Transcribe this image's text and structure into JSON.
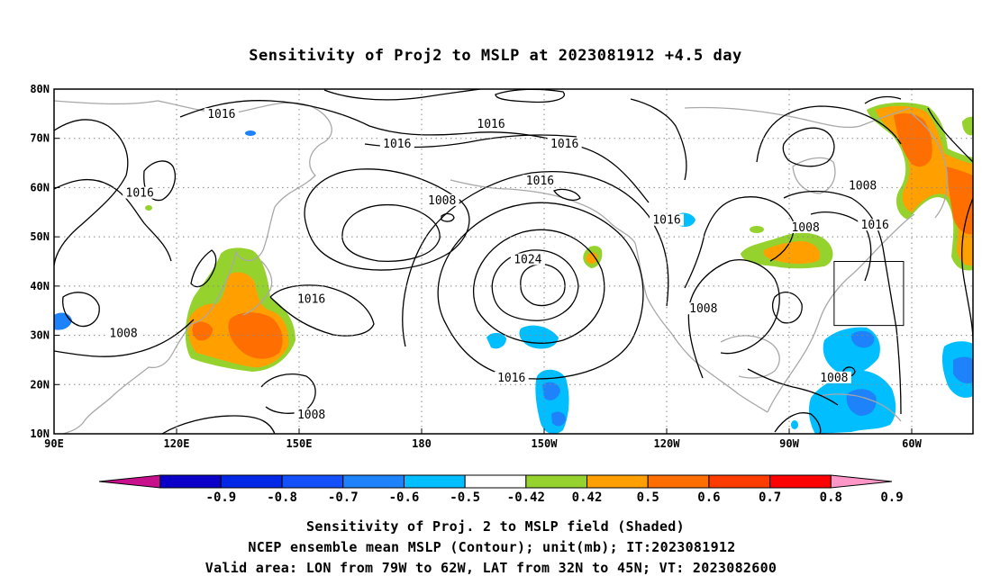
{
  "title": "Sensitivity of Proj2 to MSLP at 2023081912 +4.5 day",
  "map": {
    "lon_ticks": [
      "90E",
      "120E",
      "150E",
      "180",
      "150W",
      "120W",
      "90W",
      "60W"
    ],
    "lat_ticks": [
      "80N",
      "70N",
      "60N",
      "50N",
      "40N",
      "30N",
      "20N",
      "10N"
    ],
    "lon_range_deg_east": [
      90,
      315
    ],
    "lat_range": [
      10,
      80
    ],
    "grid": "dotted",
    "valid_box": {
      "lon_w": [
        79,
        62
      ],
      "lat_n": [
        32,
        45
      ]
    },
    "contour_labels": [
      {
        "text": "1016",
        "lon": 131,
        "lat": 74.5
      },
      {
        "text": "1016",
        "lon": 174,
        "lat": 68.5
      },
      {
        "text": "1016",
        "lon": 111,
        "lat": 58.5
      },
      {
        "text": "1016",
        "lon": 197,
        "lat": 72.5
      },
      {
        "text": "1016",
        "lon": 215,
        "lat": 68.5
      },
      {
        "text": "1016",
        "lon": 209,
        "lat": 61
      },
      {
        "text": "1008",
        "lon": 185,
        "lat": 57
      },
      {
        "text": "1024",
        "lon": 206,
        "lat": 45
      },
      {
        "text": "1016",
        "lon": 240,
        "lat": 53
      },
      {
        "text": "1008",
        "lon": 274,
        "lat": 51.5
      },
      {
        "text": "1008",
        "lon": 107,
        "lat": 30
      },
      {
        "text": "1016",
        "lon": 153,
        "lat": 37
      },
      {
        "text": "1008",
        "lon": 249,
        "lat": 35
      },
      {
        "text": "1016",
        "lon": 202,
        "lat": 21
      },
      {
        "text": "1008",
        "lon": 288,
        "lat": 60
      },
      {
        "text": "1016",
        "lon": 291,
        "lat": 52
      },
      {
        "text": "1008",
        "lon": 153,
        "lat": 13.5
      },
      {
        "text": "1008",
        "lon": 281,
        "lat": 21
      }
    ]
  },
  "colorbar": {
    "labels": [
      "-0.9",
      "-0.8",
      "-0.7",
      "-0.6",
      "-0.5",
      "-0.42",
      "0.42",
      "0.5",
      "0.6",
      "0.7",
      "0.8",
      "0.9"
    ],
    "colors": [
      "#c8108c",
      "#0a00c8",
      "#0028e6",
      "#1450fa",
      "#1e82fa",
      "#00beff",
      "#ffffff",
      "#96d22d",
      "#ffa000",
      "#ff6e00",
      "#ff3c00",
      "#ff0000",
      "#ff96c8"
    ]
  },
  "captions": [
    "Sensitivity of Proj. 2 to MSLP field (Shaded)",
    "NCEP ensemble mean MSLP (Contour); unit(mb); IT:2023081912",
    "Valid area: LON from 79W to 62W, LAT from 32N to 45N; VT: 2023082600"
  ]
}
